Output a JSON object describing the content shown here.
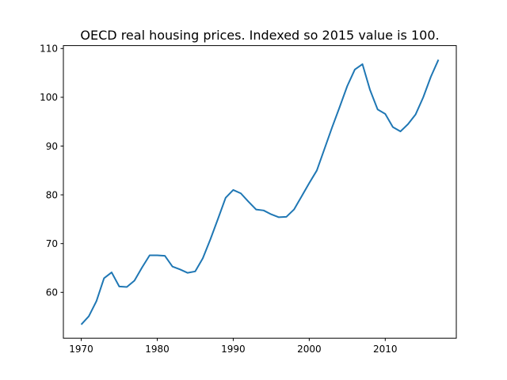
{
  "chart_data": {
    "type": "line",
    "title": "OECD real housing prices. Indexed so 2015 value is 100.",
    "xlabel": "",
    "ylabel": "",
    "xlim": [
      1967.65,
      2019.35
    ],
    "ylim": [
      50.6,
      110.6
    ],
    "xticks": [
      1970,
      1980,
      1990,
      2000,
      2010
    ],
    "yticks": [
      60,
      70,
      80,
      90,
      100,
      110
    ],
    "grid": false,
    "legend": "none",
    "series": [
      {
        "color": "#1f77b4",
        "x": [
          1970,
          1971,
          1972,
          1973,
          1974,
          1975,
          1976,
          1977,
          1978,
          1979,
          1980,
          1981,
          1982,
          1983,
          1984,
          1985,
          1986,
          1987,
          1988,
          1989,
          1990,
          1991,
          1992,
          1993,
          1994,
          1995,
          1996,
          1997,
          1998,
          1999,
          2000,
          2001,
          2002,
          2003,
          2004,
          2005,
          2006,
          2007,
          2008,
          2009,
          2010,
          2011,
          2012,
          2013,
          2014,
          2015,
          2016,
          2017
        ],
        "y": [
          53.4,
          55.1,
          58.2,
          62.9,
          64.1,
          61.2,
          61.1,
          62.4,
          65.1,
          67.6,
          67.6,
          67.5,
          65.3,
          64.7,
          64.0,
          64.3,
          67.0,
          70.9,
          75.1,
          79.4,
          81.0,
          80.3,
          78.6,
          77.0,
          76.8,
          76.0,
          75.4,
          75.5,
          77.0,
          79.7,
          82.4,
          85.0,
          89.4,
          93.8,
          98.0,
          102.3,
          105.7,
          106.8,
          101.5,
          97.5,
          96.6,
          93.9,
          93.0,
          94.5,
          96.5,
          100.0,
          104.2,
          107.7
        ]
      }
    ]
  }
}
